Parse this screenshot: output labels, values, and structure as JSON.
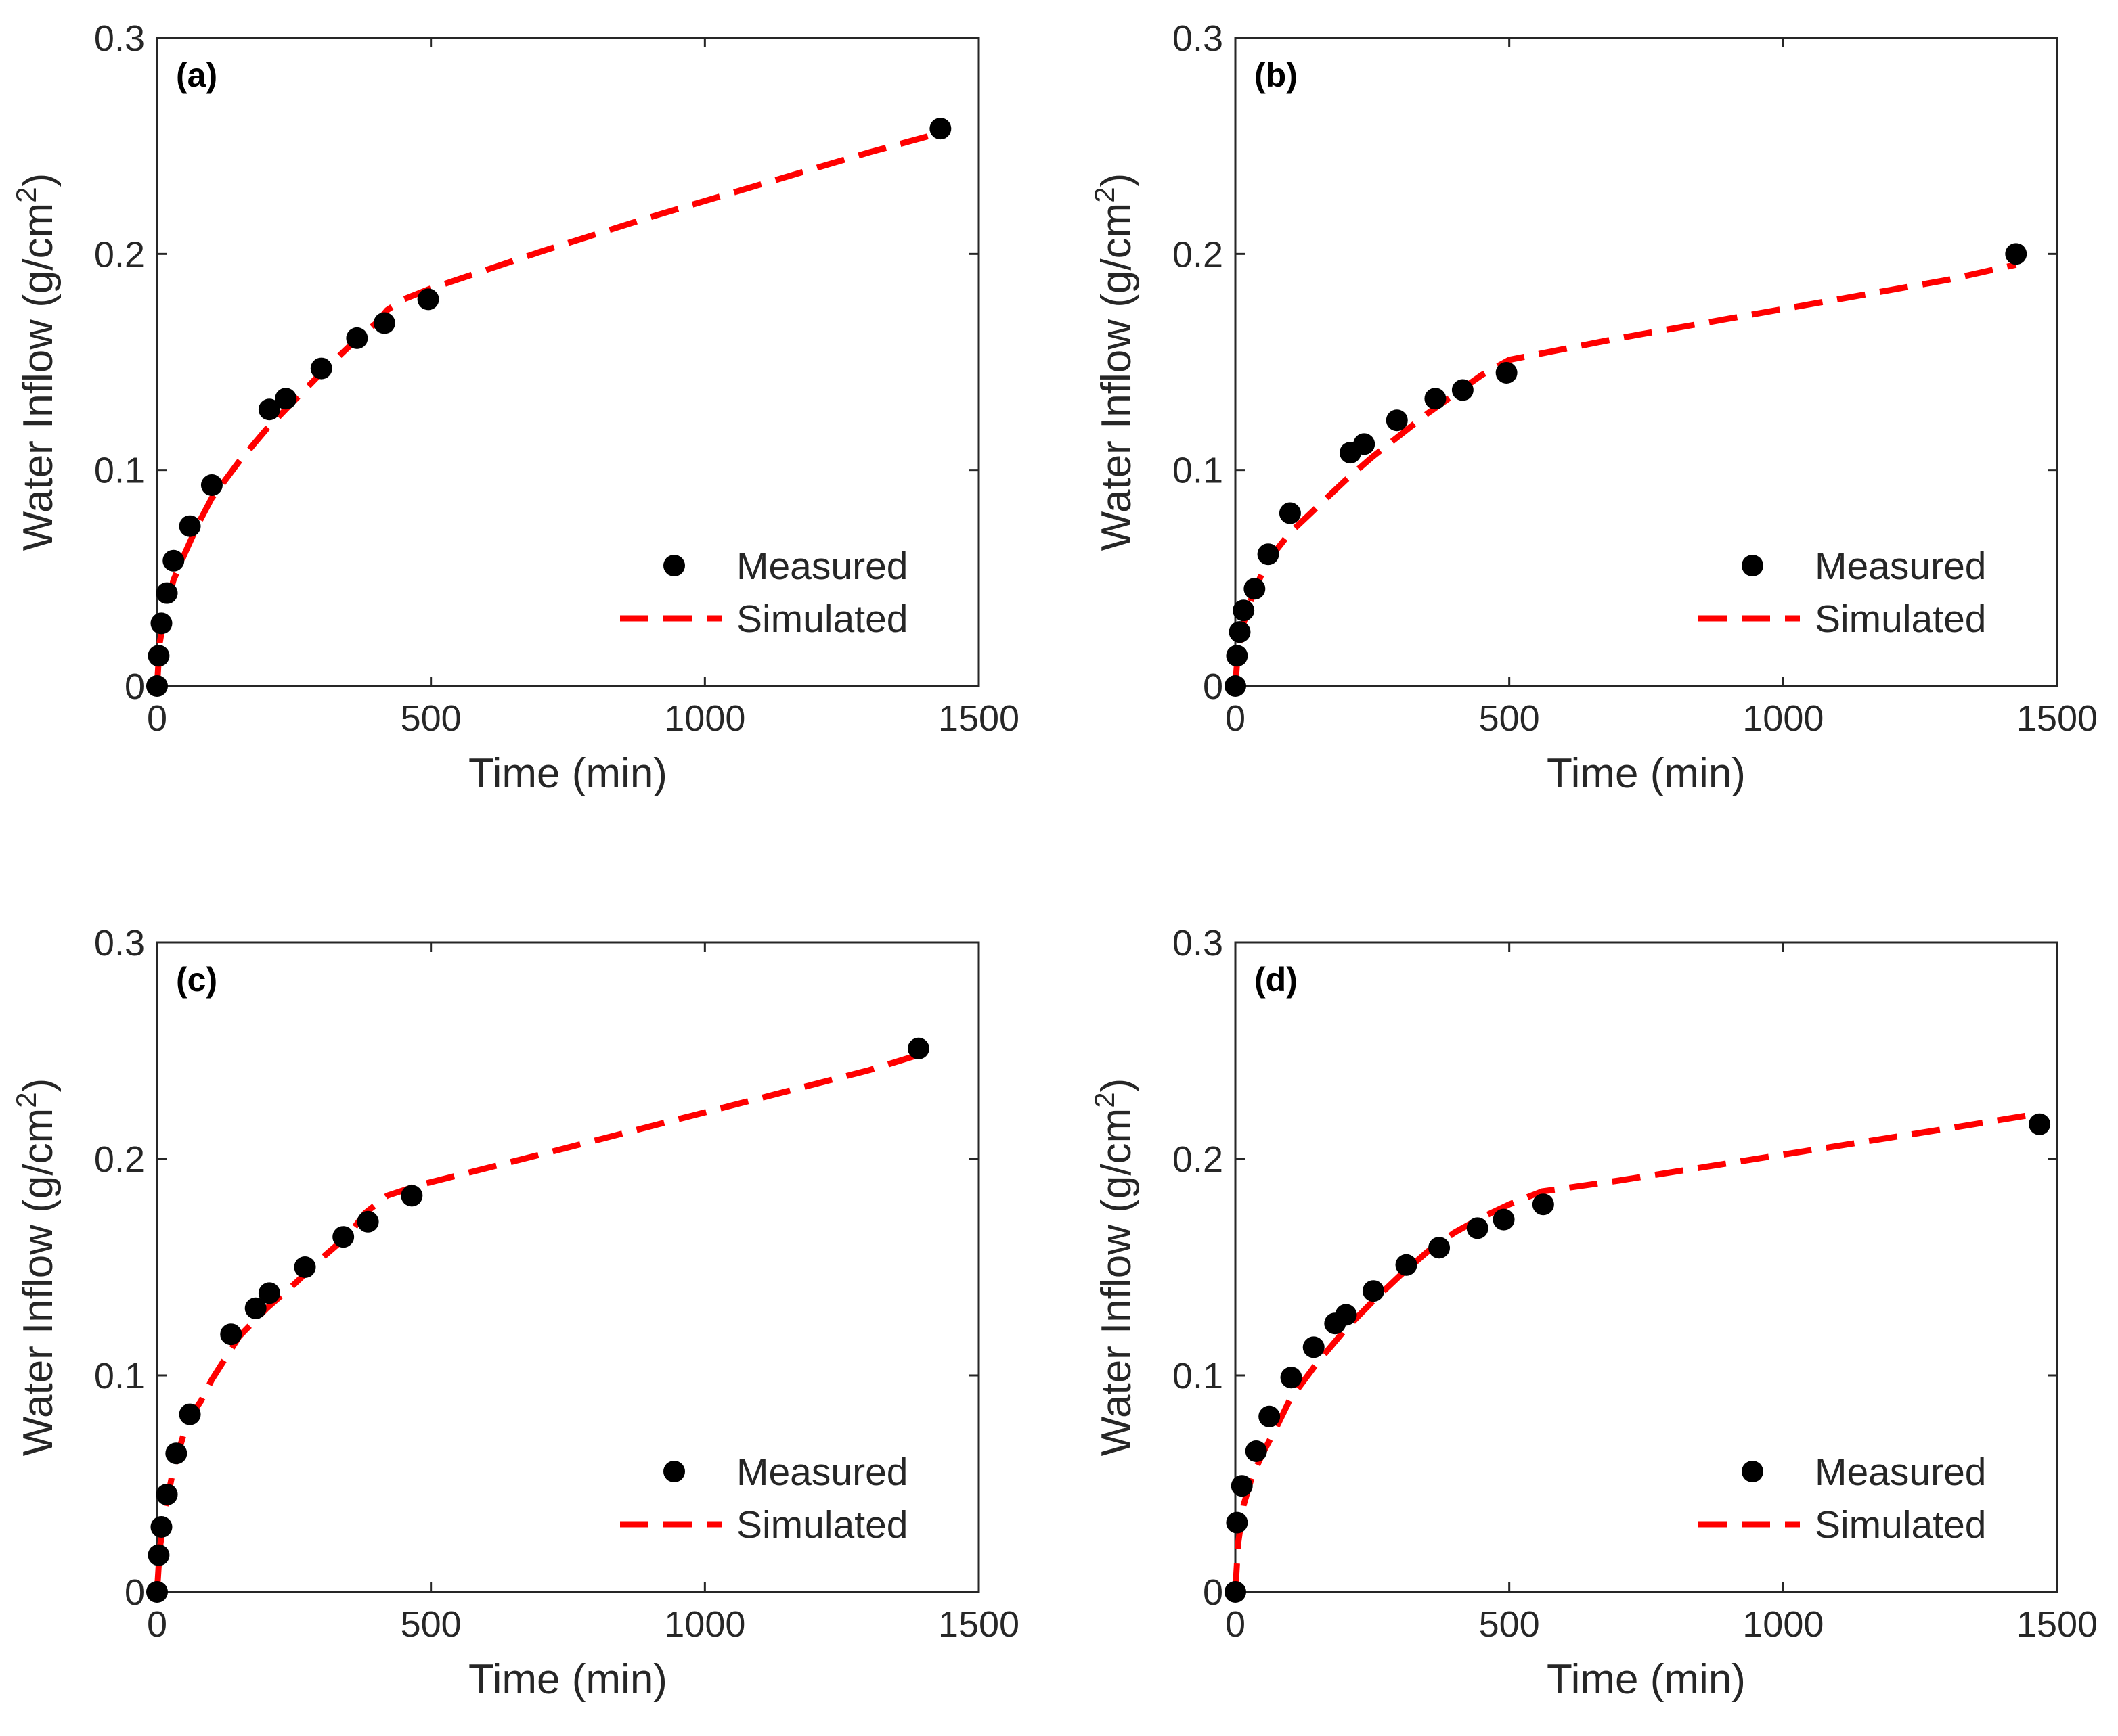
{
  "figure": {
    "legend": {
      "measured": "Measured",
      "simulated": "Simulated"
    },
    "xlabel": "Time (min)",
    "ylabel_main": "Water Inflow (g/cm",
    "ylabel_sup": "2",
    "ylabel_end": ")"
  },
  "colors": {
    "measured": "#000000",
    "simulated": "#ff0000",
    "axis": "#262626"
  },
  "chart_data": [
    {
      "type": "scatter",
      "panel_label": "(a)",
      "xlabel": "Time (min)",
      "ylabel": "Water Inflow (g/cm2)",
      "xlim": [
        0,
        1500
      ],
      "ylim": [
        0,
        0.3
      ],
      "xticks": [
        0,
        500,
        1000,
        1500
      ],
      "yticks": [
        0,
        0.1,
        0.2,
        0.3
      ],
      "xtick_labels": [
        "0",
        "500",
        "1000",
        "1500"
      ],
      "ytick_labels": [
        "0",
        "0.1",
        "0.2",
        "0.3"
      ],
      "legend": [
        "Measured",
        "Simulated"
      ],
      "legend_position": "bottom-right",
      "series": [
        {
          "name": "Measured",
          "style": "markers",
          "x": [
            0,
            3,
            8,
            18,
            30,
            60,
            100,
            205,
            235,
            300,
            365,
            415,
            495,
            1430
          ],
          "y": [
            0,
            0.014,
            0.029,
            0.043,
            0.058,
            0.074,
            0.093,
            0.128,
            0.133,
            0.147,
            0.161,
            0.168,
            0.179,
            0.258
          ]
        },
        {
          "name": "Simulated",
          "style": "dashed",
          "x": [
            0,
            5,
            15,
            30,
            50,
            75,
            100,
            150,
            200,
            250,
            300,
            350,
            400,
            420,
            450,
            500,
            700,
            900,
            1100,
            1300,
            1430
          ],
          "y": [
            0,
            0.02,
            0.035,
            0.049,
            0.061,
            0.075,
            0.087,
            0.104,
            0.119,
            0.132,
            0.145,
            0.157,
            0.168,
            0.174,
            0.179,
            0.184,
            0.201,
            0.217,
            0.232,
            0.247,
            0.256
          ]
        }
      ]
    },
    {
      "type": "scatter",
      "panel_label": "(b)",
      "xlabel": "Time (min)",
      "ylabel": "Water Inflow (g/cm2)",
      "xlim": [
        0,
        1500
      ],
      "ylim": [
        0,
        0.3
      ],
      "xticks": [
        0,
        500,
        1000,
        1500
      ],
      "yticks": [
        0,
        0.1,
        0.2,
        0.3
      ],
      "xtick_labels": [
        "0",
        "500",
        "1000",
        "1500"
      ],
      "ytick_labels": [
        "0",
        "0.1",
        "0.2",
        "0.3"
      ],
      "legend": [
        "Measured",
        "Simulated"
      ],
      "legend_position": "bottom-right",
      "series": [
        {
          "name": "Measured",
          "style": "markers",
          "x": [
            0,
            3,
            8,
            15,
            35,
            60,
            100,
            210,
            235,
            295,
            365,
            415,
            495,
            1425
          ],
          "y": [
            0,
            0.014,
            0.025,
            0.035,
            0.045,
            0.061,
            0.08,
            0.108,
            0.112,
            0.123,
            0.133,
            0.137,
            0.145,
            0.2
          ]
        },
        {
          "name": "Simulated",
          "style": "dashed",
          "x": [
            0,
            5,
            15,
            30,
            50,
            75,
            100,
            150,
            200,
            250,
            300,
            350,
            400,
            450,
            500,
            700,
            900,
            1100,
            1300,
            1425
          ],
          "y": [
            0,
            0.017,
            0.029,
            0.041,
            0.053,
            0.063,
            0.071,
            0.083,
            0.095,
            0.106,
            0.116,
            0.126,
            0.135,
            0.144,
            0.151,
            0.161,
            0.17,
            0.179,
            0.188,
            0.195
          ]
        }
      ]
    },
    {
      "type": "scatter",
      "panel_label": "(c)",
      "xlabel": "Time (min)",
      "ylabel": "Water Inflow (g/cm2)",
      "xlim": [
        0,
        1500
      ],
      "ylim": [
        0,
        0.3
      ],
      "xticks": [
        0,
        500,
        1000,
        1500
      ],
      "yticks": [
        0,
        0.1,
        0.2,
        0.3
      ],
      "xtick_labels": [
        "0",
        "500",
        "1000",
        "1500"
      ],
      "ytick_labels": [
        "0",
        "0.1",
        "0.2",
        "0.3"
      ],
      "legend": [
        "Measured",
        "Simulated"
      ],
      "legend_position": "bottom-right",
      "series": [
        {
          "name": "Measured",
          "style": "markers",
          "x": [
            0,
            3,
            8,
            18,
            35,
            60,
            135,
            180,
            205,
            270,
            340,
            385,
            465,
            1390
          ],
          "y": [
            0,
            0.017,
            0.03,
            0.045,
            0.064,
            0.082,
            0.119,
            0.131,
            0.138,
            0.15,
            0.164,
            0.171,
            0.183,
            0.251
          ]
        },
        {
          "name": "Simulated",
          "style": "dashed",
          "x": [
            0,
            5,
            15,
            30,
            50,
            60,
            80,
            100,
            150,
            200,
            250,
            300,
            350,
            380,
            420,
            480,
            700,
            900,
            1100,
            1300,
            1390
          ],
          "y": [
            0,
            0.02,
            0.038,
            0.057,
            0.074,
            0.081,
            0.088,
            0.098,
            0.118,
            0.131,
            0.142,
            0.154,
            0.165,
            0.175,
            0.183,
            0.188,
            0.202,
            0.215,
            0.228,
            0.241,
            0.248
          ]
        }
      ]
    },
    {
      "type": "scatter",
      "panel_label": "(d)",
      "xlabel": "Time (min)",
      "ylabel": "Water Inflow (g/cm2)",
      "xlim": [
        0,
        1500
      ],
      "ylim": [
        0,
        0.3
      ],
      "xticks": [
        0,
        500,
        1000,
        1500
      ],
      "yticks": [
        0,
        0.1,
        0.2,
        0.3
      ],
      "xtick_labels": [
        "0",
        "500",
        "1000",
        "1500"
      ],
      "ytick_labels": [
        "0",
        "0.1",
        "0.2",
        "0.3"
      ],
      "legend": [
        "Measured",
        "Simulated"
      ],
      "legend_position": "bottom-right",
      "series": [
        {
          "name": "Measured",
          "style": "markers",
          "x": [
            0,
            3,
            12,
            38,
            62,
            102,
            143,
            182,
            202,
            252,
            312,
            372,
            442,
            490,
            562,
            1468
          ],
          "y": [
            0,
            0.032,
            0.049,
            0.065,
            0.081,
            0.099,
            0.113,
            0.124,
            0.128,
            0.139,
            0.151,
            0.159,
            0.168,
            0.172,
            0.179,
            0.216
          ]
        },
        {
          "name": "Simulated",
          "style": "dashed",
          "x": [
            0,
            5,
            15,
            30,
            50,
            75,
            100,
            150,
            200,
            250,
            300,
            350,
            400,
            450,
            500,
            560,
            700,
            900,
            1100,
            1300,
            1468
          ],
          "y": [
            0,
            0.022,
            0.04,
            0.053,
            0.064,
            0.076,
            0.089,
            0.106,
            0.121,
            0.134,
            0.146,
            0.157,
            0.166,
            0.173,
            0.179,
            0.185,
            0.19,
            0.198,
            0.206,
            0.214,
            0.221
          ]
        }
      ]
    }
  ]
}
